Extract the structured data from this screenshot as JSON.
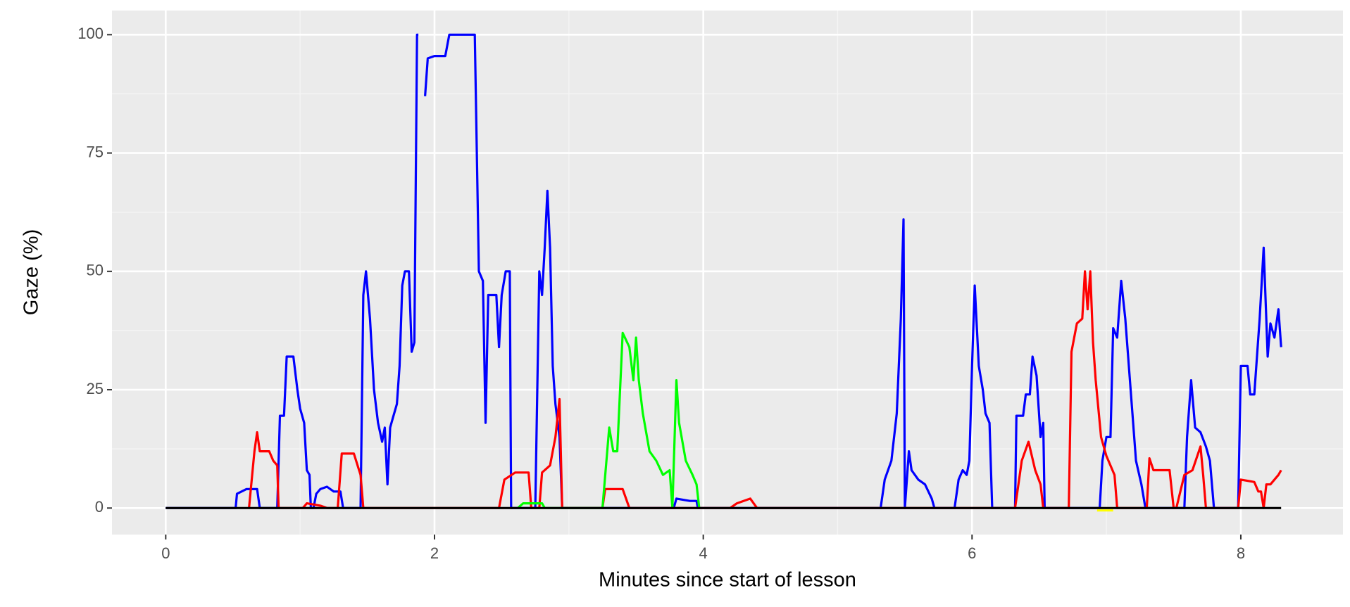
{
  "chart_data": {
    "type": "line",
    "x_label": "Minutes since start of lesson",
    "y_label": "Gaze (%)",
    "xlim": [
      -0.4,
      8.76
    ],
    "ylim": [
      -5.6,
      105.1
    ],
    "xticks": [
      0,
      2,
      4,
      6,
      8
    ],
    "yticks": [
      0,
      25,
      50,
      75,
      100
    ],
    "grid": true,
    "legend": false,
    "series": [
      {
        "color": "#0000ff",
        "x": [
          0,
          0.52,
          0.53,
          0.6,
          0.68,
          0.7,
          0.83,
          0.85,
          0.88,
          0.9,
          0.95,
          0.98,
          1.0,
          1.03,
          1.05,
          1.07,
          1.08,
          1.1,
          1.12,
          1.15,
          1.2,
          1.25,
          1.3,
          1.32,
          1.45,
          1.47,
          1.49,
          1.52,
          1.55,
          1.58,
          1.61,
          1.63,
          1.65,
          1.67,
          1.69,
          1.72,
          1.74,
          1.76,
          1.78,
          1.81,
          1.83,
          1.85,
          1.87,
          1.88,
          1.9,
          1.93,
          1.95,
          2.0,
          2.08,
          2.11,
          2.15,
          2.3,
          2.33,
          2.36,
          2.38,
          2.4,
          2.46,
          2.48,
          2.5,
          2.53,
          2.56,
          2.57,
          2.75,
          2.78,
          2.8,
          2.82,
          2.84,
          2.86,
          2.88,
          2.9,
          2.93,
          2.95,
          3.78,
          3.8,
          3.9,
          3.95,
          3.96,
          5.32,
          5.35,
          5.4,
          5.44,
          5.47,
          5.49,
          5.5,
          5.53,
          5.55,
          5.6,
          5.65,
          5.7,
          5.72,
          5.87,
          5.9,
          5.93,
          5.96,
          5.98,
          6.0,
          6.02,
          6.05,
          6.08,
          6.1,
          6.13,
          6.15,
          6.32,
          6.33,
          6.38,
          6.4,
          6.43,
          6.45,
          6.48,
          6.51,
          6.53,
          6.54,
          6.95,
          6.97,
          7.0,
          7.03,
          7.05,
          7.08,
          7.11,
          7.14,
          7.18,
          7.22,
          7.26,
          7.29,
          7.58,
          7.6,
          7.63,
          7.66,
          7.7,
          7.74,
          7.77,
          7.8,
          7.98,
          8.0,
          8.05,
          8.07,
          8.1,
          8.14,
          8.17,
          8.2,
          8.22,
          8.25,
          8.28,
          8.3
        ],
        "values": [
          0,
          0,
          3,
          4,
          4,
          0,
          0,
          19.5,
          19.5,
          32,
          32,
          25,
          21,
          18,
          8,
          7,
          0,
          0,
          3,
          4,
          4.5,
          3.5,
          3.5,
          0,
          0,
          45,
          50,
          40,
          25,
          18,
          14,
          17,
          5,
          17,
          19,
          22,
          30,
          47,
          50,
          50,
          33,
          35,
          100,
          100,
          null,
          87,
          95,
          95.5,
          95.5,
          100,
          100,
          100,
          50,
          48,
          18,
          45,
          45,
          34,
          45,
          50,
          50,
          0,
          0,
          50,
          45,
          55,
          67,
          55,
          30,
          22,
          15,
          0,
          0,
          2,
          1.5,
          1.5,
          0,
          0,
          6,
          10,
          20,
          40,
          61,
          0,
          12,
          8,
          6,
          5,
          2,
          0,
          0,
          6,
          8,
          7,
          10,
          30,
          47,
          30,
          25,
          20,
          18,
          0,
          0,
          19.5,
          19.5,
          24,
          24,
          32,
          28,
          15,
          18,
          0,
          0,
          10,
          15,
          15,
          38,
          36,
          48,
          40,
          25,
          10,
          5,
          0,
          0,
          15,
          27,
          17,
          16,
          13,
          10,
          0,
          0,
          30,
          30,
          24,
          24,
          40,
          55,
          32,
          39,
          36,
          42,
          34
        ]
      },
      {
        "color": "#ff0000",
        "x": [
          0.62,
          0.66,
          0.68,
          0.7,
          0.77,
          0.8,
          0.83,
          0.84,
          1.02,
          1.05,
          1.15,
          1.2,
          1.28,
          1.31,
          1.4,
          1.45,
          1.47,
          2.48,
          2.52,
          2.6,
          2.7,
          2.72,
          2.78,
          2.8,
          2.86,
          2.9,
          2.93,
          2.95,
          3.25,
          3.27,
          3.4,
          3.45,
          4.2,
          4.25,
          4.35,
          4.4,
          6.32,
          6.37,
          6.42,
          6.47,
          6.51,
          6.53,
          6.72,
          6.74,
          6.78,
          6.82,
          6.84,
          6.86,
          6.88,
          6.9,
          6.92,
          6.96,
          7.0,
          7.06,
          7.08,
          7.3,
          7.32,
          7.35,
          7.47,
          7.5,
          7.52,
          7.58,
          7.64,
          7.7,
          7.72,
          7.74,
          7.98,
          8.0,
          8.1,
          8.13,
          8.15,
          8.17,
          8.19,
          8.22,
          8.28,
          8.3
        ],
        "values": [
          0,
          12,
          16,
          12,
          12,
          10,
          9,
          0,
          0,
          1,
          0.5,
          0,
          0,
          11.5,
          11.5,
          7,
          0,
          0,
          6,
          7.5,
          7.5,
          0,
          0,
          7.5,
          9,
          15,
          23,
          0,
          0,
          4,
          4,
          0,
          0,
          1,
          2,
          0,
          0,
          10,
          14,
          8,
          5,
          0,
          0,
          33,
          39,
          40,
          50,
          42,
          50,
          35,
          27,
          15,
          11,
          7,
          0,
          0,
          10.5,
          8,
          8,
          0,
          0,
          7,
          8,
          13,
          7,
          0,
          0,
          6,
          5.5,
          3.5,
          3.5,
          0,
          5,
          5,
          7,
          8
        ]
      },
      {
        "color": "#00ff00",
        "x": [
          2.62,
          2.66,
          2.8,
          2.82,
          3.25,
          3.3,
          3.33,
          3.36,
          3.4,
          3.45,
          3.48,
          3.5,
          3.52,
          3.55,
          3.6,
          3.65,
          3.7,
          3.75,
          3.77,
          3.8,
          3.82,
          3.87,
          3.92,
          3.95,
          3.97
        ],
        "values": [
          0,
          1,
          1,
          0,
          0,
          17,
          12,
          12,
          37,
          34,
          27,
          36,
          27,
          20,
          12,
          10,
          7,
          8,
          0,
          27,
          18,
          10,
          7,
          5,
          0
        ]
      },
      {
        "color": "#ffff00",
        "x": [
          6.93,
          7.05
        ],
        "values": [
          -0.5,
          -0.5
        ]
      },
      {
        "color": "#000000",
        "x": [
          0,
          8.3
        ],
        "values": [
          0,
          0
        ]
      }
    ]
  }
}
